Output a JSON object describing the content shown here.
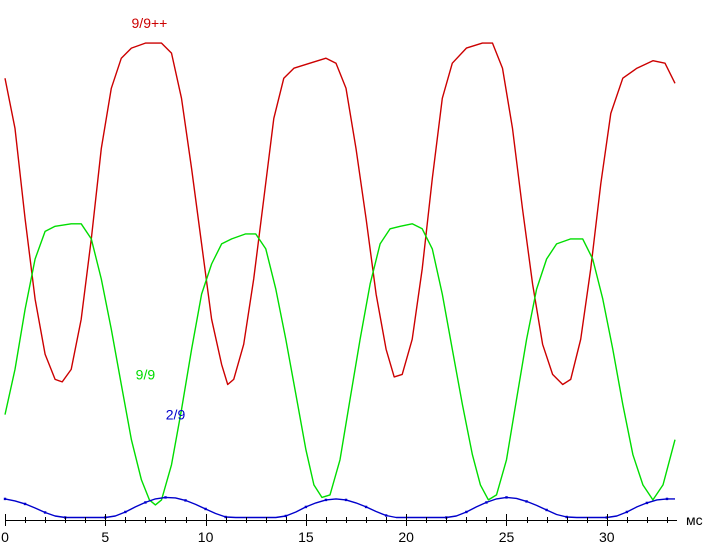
{
  "chart_data": {
    "type": "line",
    "xlabel": "",
    "x_unit": "мс",
    "xlim": [
      0,
      33.5
    ],
    "ylim": [
      0,
      100
    ],
    "x_ticks": [
      0,
      5,
      10,
      15,
      20,
      25,
      30
    ],
    "x_tick_labels": [
      "0",
      "5",
      "10",
      "15",
      "20",
      "25",
      "30"
    ],
    "grid": false,
    "legend": "inline",
    "series": [
      {
        "name": "9/9++",
        "color": "#cc0000",
        "label_at": [
          7.2,
          98
        ],
        "points": [
          [
            0.0,
            88
          ],
          [
            0.5,
            78
          ],
          [
            1.0,
            60
          ],
          [
            1.5,
            44
          ],
          [
            2.0,
            33
          ],
          [
            2.5,
            28
          ],
          [
            2.85,
            27.5
          ],
          [
            3.3,
            30
          ],
          [
            3.8,
            40
          ],
          [
            4.3,
            56
          ],
          [
            4.8,
            74
          ],
          [
            5.3,
            86
          ],
          [
            5.8,
            92
          ],
          [
            6.3,
            94
          ],
          [
            7.0,
            95
          ],
          [
            7.8,
            95
          ],
          [
            8.3,
            93
          ],
          [
            8.8,
            84
          ],
          [
            9.3,
            70
          ],
          [
            9.8,
            55
          ],
          [
            10.3,
            40
          ],
          [
            10.8,
            31
          ],
          [
            11.1,
            27
          ],
          [
            11.4,
            28
          ],
          [
            11.9,
            35
          ],
          [
            12.4,
            48
          ],
          [
            12.9,
            64
          ],
          [
            13.4,
            80
          ],
          [
            13.9,
            88
          ],
          [
            14.4,
            90
          ],
          [
            15.2,
            91
          ],
          [
            16.0,
            92
          ],
          [
            16.5,
            91
          ],
          [
            17.0,
            86
          ],
          [
            17.5,
            74
          ],
          [
            18.0,
            60
          ],
          [
            18.5,
            45
          ],
          [
            19.0,
            34
          ],
          [
            19.4,
            28.5
          ],
          [
            19.8,
            29
          ],
          [
            20.3,
            36
          ],
          [
            20.8,
            50
          ],
          [
            21.3,
            68
          ],
          [
            21.8,
            84
          ],
          [
            22.3,
            91
          ],
          [
            23.0,
            94
          ],
          [
            23.8,
            95
          ],
          [
            24.3,
            95
          ],
          [
            24.8,
            90
          ],
          [
            25.3,
            78
          ],
          [
            25.8,
            62
          ],
          [
            26.3,
            47
          ],
          [
            26.8,
            35
          ],
          [
            27.3,
            29
          ],
          [
            27.8,
            27
          ],
          [
            28.2,
            28
          ],
          [
            28.7,
            36
          ],
          [
            29.2,
            50
          ],
          [
            29.7,
            67
          ],
          [
            30.2,
            81
          ],
          [
            30.8,
            88
          ],
          [
            31.5,
            90
          ],
          [
            32.3,
            91.5
          ],
          [
            32.9,
            91
          ],
          [
            33.4,
            87
          ]
        ]
      },
      {
        "name": "9/9",
        "color": "#00dd00",
        "label_at": [
          7.0,
          28
        ],
        "points": [
          [
            0.0,
            21
          ],
          [
            0.5,
            30
          ],
          [
            1.0,
            42
          ],
          [
            1.5,
            52
          ],
          [
            2.0,
            57.5
          ],
          [
            2.5,
            58.5
          ],
          [
            3.3,
            59
          ],
          [
            3.8,
            59
          ],
          [
            4.3,
            56
          ],
          [
            4.8,
            48
          ],
          [
            5.3,
            38
          ],
          [
            5.8,
            27
          ],
          [
            6.3,
            16
          ],
          [
            6.8,
            8
          ],
          [
            7.2,
            4
          ],
          [
            7.5,
            3
          ],
          [
            7.8,
            4
          ],
          [
            8.3,
            11
          ],
          [
            8.8,
            22
          ],
          [
            9.3,
            34
          ],
          [
            9.8,
            45
          ],
          [
            10.3,
            51
          ],
          [
            10.8,
            55
          ],
          [
            11.3,
            56
          ],
          [
            12.0,
            57
          ],
          [
            12.5,
            57
          ],
          [
            13.0,
            54
          ],
          [
            13.5,
            46
          ],
          [
            14.0,
            36
          ],
          [
            14.5,
            25
          ],
          [
            15.0,
            14
          ],
          [
            15.4,
            7
          ],
          [
            15.8,
            4.5
          ],
          [
            16.2,
            5
          ],
          [
            16.7,
            12
          ],
          [
            17.2,
            24
          ],
          [
            17.7,
            36
          ],
          [
            18.2,
            47
          ],
          [
            18.7,
            55
          ],
          [
            19.2,
            58
          ],
          [
            19.7,
            58.5
          ],
          [
            20.3,
            59
          ],
          [
            20.8,
            58
          ],
          [
            21.3,
            54
          ],
          [
            21.8,
            45
          ],
          [
            22.3,
            34
          ],
          [
            22.8,
            23
          ],
          [
            23.3,
            13
          ],
          [
            23.7,
            7
          ],
          [
            24.1,
            4
          ],
          [
            24.5,
            5
          ],
          [
            25.0,
            12
          ],
          [
            25.5,
            24
          ],
          [
            26.0,
            36
          ],
          [
            26.5,
            46
          ],
          [
            27.0,
            52
          ],
          [
            27.5,
            55
          ],
          [
            28.2,
            56
          ],
          [
            28.8,
            56
          ],
          [
            29.3,
            52
          ],
          [
            29.8,
            44
          ],
          [
            30.3,
            34
          ],
          [
            30.8,
            23
          ],
          [
            31.3,
            13
          ],
          [
            31.8,
            7
          ],
          [
            32.3,
            4
          ],
          [
            32.8,
            7
          ],
          [
            33.4,
            16
          ]
        ]
      },
      {
        "name": "2/9",
        "color": "#0000cc",
        "label_at": [
          8.5,
          20
        ],
        "points": [
          [
            0.0,
            4.2
          ],
          [
            0.5,
            3.8
          ],
          [
            1.0,
            3.2
          ],
          [
            1.5,
            2.4
          ],
          [
            2.0,
            1.5
          ],
          [
            2.5,
            0.8
          ],
          [
            3.0,
            0.5
          ],
          [
            5.0,
            0.5
          ],
          [
            5.5,
            0.8
          ],
          [
            6.0,
            1.6
          ],
          [
            6.5,
            2.6
          ],
          [
            7.0,
            3.5
          ],
          [
            7.5,
            4.2
          ],
          [
            8.0,
            4.5
          ],
          [
            8.5,
            4.4
          ],
          [
            9.0,
            3.9
          ],
          [
            9.5,
            3.1
          ],
          [
            10.0,
            2.2
          ],
          [
            10.5,
            1.3
          ],
          [
            11.0,
            0.6
          ],
          [
            11.5,
            0.5
          ],
          [
            13.5,
            0.5
          ],
          [
            14.0,
            0.8
          ],
          [
            14.5,
            1.6
          ],
          [
            15.0,
            2.6
          ],
          [
            15.5,
            3.4
          ],
          [
            16.0,
            4.0
          ],
          [
            16.5,
            4.2
          ],
          [
            17.0,
            4.0
          ],
          [
            17.5,
            3.4
          ],
          [
            18.0,
            2.6
          ],
          [
            18.5,
            1.7
          ],
          [
            19.0,
            0.9
          ],
          [
            19.5,
            0.5
          ],
          [
            22.0,
            0.5
          ],
          [
            22.5,
            0.8
          ],
          [
            23.0,
            1.6
          ],
          [
            23.5,
            2.6
          ],
          [
            24.0,
            3.5
          ],
          [
            24.5,
            4.2
          ],
          [
            25.0,
            4.5
          ],
          [
            25.5,
            4.3
          ],
          [
            26.0,
            3.7
          ],
          [
            26.5,
            2.9
          ],
          [
            27.0,
            2.0
          ],
          [
            27.5,
            1.1
          ],
          [
            28.0,
            0.6
          ],
          [
            28.5,
            0.5
          ],
          [
            30.0,
            0.5
          ],
          [
            30.5,
            0.8
          ],
          [
            31.0,
            1.6
          ],
          [
            31.5,
            2.6
          ],
          [
            32.0,
            3.4
          ],
          [
            32.5,
            4.0
          ],
          [
            33.0,
            4.2
          ],
          [
            33.4,
            4.2
          ]
        ]
      }
    ]
  }
}
